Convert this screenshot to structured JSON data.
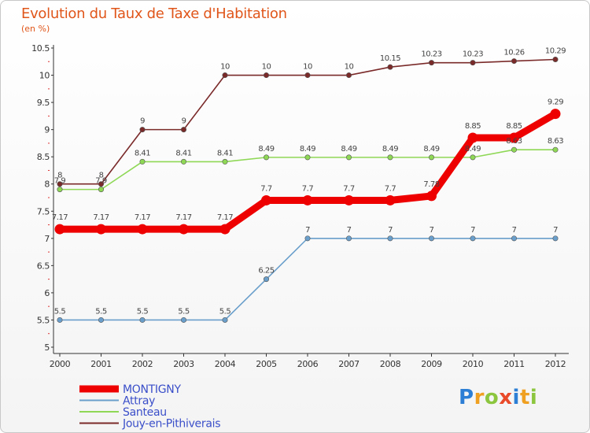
{
  "title": "Evolution du Taux de Taxe d'Habitation",
  "subtitle": "(en %)",
  "logo": {
    "text": "Proxiti",
    "letters": [
      {
        "ch": "P",
        "color": "#2c7fd4"
      },
      {
        "ch": "r",
        "color": "#f0a020"
      },
      {
        "ch": "o",
        "color": "#8cc63e"
      },
      {
        "ch": "x",
        "color": "#e94b2a"
      },
      {
        "ch": "i",
        "color": "#2c7fd4"
      },
      {
        "ch": "t",
        "color": "#f0a020"
      },
      {
        "ch": "i",
        "color": "#8cc63e"
      }
    ]
  },
  "chart_data": {
    "type": "line",
    "x": [
      "2000",
      "2001",
      "2002",
      "2003",
      "2004",
      "2005",
      "2006",
      "2007",
      "2008",
      "2009",
      "2010",
      "2011",
      "2012"
    ],
    "ylim": [
      5,
      10.5
    ],
    "yticks": [
      "5",
      "5.5",
      "6",
      "6.5",
      "7",
      "7.5",
      "8",
      "8.5",
      "9",
      "9.5",
      "10",
      "10.5"
    ],
    "grid": false,
    "legend_position": "bottom-left",
    "series": [
      {
        "name": "Jouy-en-Pithiverais",
        "color": "#7b2a2a",
        "values": [
          8,
          8,
          9,
          9,
          10,
          10,
          10,
          10,
          10.15,
          10.23,
          10.23,
          10.26,
          10.29
        ],
        "labels": [
          "8",
          "8",
          "9",
          "9",
          "10",
          "10",
          "10",
          "10",
          "10.15",
          "10.23",
          "10.23",
          "10.26",
          "10.29"
        ]
      },
      {
        "name": "Santeau",
        "color": "#8ed856",
        "values": [
          7.9,
          7.9,
          8.41,
          8.41,
          8.41,
          8.49,
          8.49,
          8.49,
          8.49,
          8.49,
          8.49,
          8.63,
          8.63
        ],
        "labels": [
          "7.9",
          "7.9",
          "8.41",
          "8.41",
          "8.41",
          "8.49",
          "8.49",
          "8.49",
          "8.49",
          "8.49",
          "8.49",
          "8.63",
          "8.63"
        ]
      },
      {
        "name": "Attray",
        "color": "#6a9fcb",
        "values": [
          5.5,
          5.5,
          5.5,
          5.5,
          5.5,
          6.25,
          7,
          7,
          7,
          7,
          7,
          7,
          7
        ],
        "labels": [
          "5.5",
          "5.5",
          "5.5",
          "5.5",
          "5.5",
          "6.25",
          "7",
          "7",
          "7",
          "7",
          "7",
          "7",
          "7"
        ]
      },
      {
        "name": "MONTIGNY",
        "color": "#ee0000",
        "values": [
          7.17,
          7.17,
          7.17,
          7.17,
          7.17,
          7.7,
          7.7,
          7.7,
          7.7,
          7.78,
          8.85,
          8.85,
          9.29
        ],
        "labels": [
          "7.17",
          "7.17",
          "7.17",
          "7.17",
          "7.17",
          "7.7",
          "7.7",
          "7.7",
          "7.7",
          "7.78",
          "8.85",
          "8.85",
          "9.29"
        ]
      }
    ],
    "legend": [
      "MONTIGNY",
      "Attray",
      "Santeau",
      "Jouy-en-Pithiverais"
    ]
  }
}
